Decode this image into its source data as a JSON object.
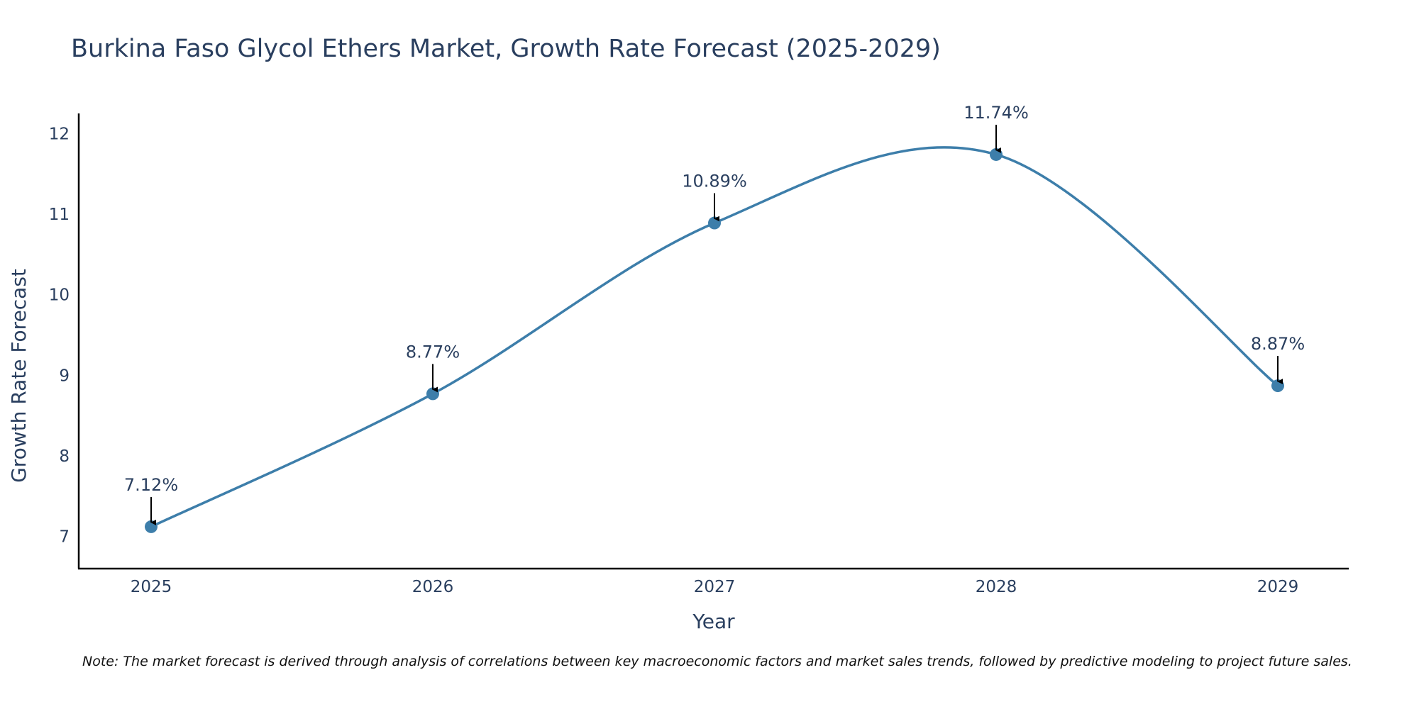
{
  "chart_data": {
    "type": "line",
    "title": "Burkina Faso Glycol Ethers Market, Growth Rate Forecast (2025-2029)",
    "xlabel": "Year",
    "ylabel": "Growth Rate Forecast",
    "categories": [
      "2025",
      "2026",
      "2027",
      "2028",
      "2029"
    ],
    "values": [
      7.12,
      8.77,
      10.89,
      11.74,
      8.87
    ],
    "data_labels": [
      "7.12%",
      "8.77%",
      "10.89%",
      "11.74%",
      "8.87%"
    ],
    "y_ticks": [
      "7",
      "8",
      "9",
      "10",
      "11",
      "12"
    ],
    "ylim": [
      6.6,
      12.25
    ],
    "grid": false,
    "line_shape": "spline",
    "line_color": "#3d7eaa",
    "marker_color": "#3d7eaa",
    "note": "Note: The market forecast is derived through analysis of correlations between key macroeconomic factors and market sales trends, followed by predictive modeling to project future sales."
  }
}
